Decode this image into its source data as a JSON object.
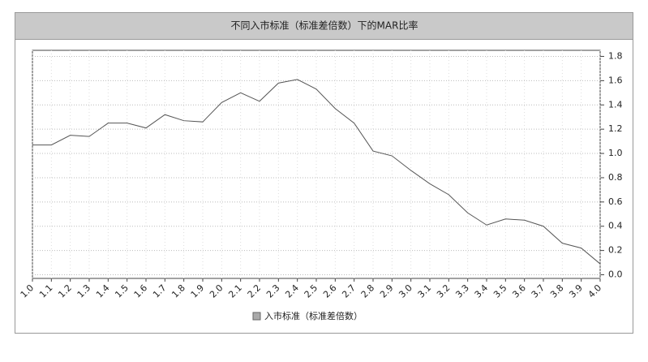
{
  "chart_data": {
    "type": "line",
    "title": "不同入市标准（标准差倍数）下的MAR比率",
    "x": [
      1.0,
      1.1,
      1.2,
      1.3,
      1.4,
      1.5,
      1.6,
      1.7,
      1.8,
      1.9,
      2.0,
      2.1,
      2.2,
      2.3,
      2.4,
      2.5,
      2.6,
      2.7,
      2.8,
      2.9,
      3.0,
      3.1,
      3.2,
      3.3,
      3.4,
      3.5,
      3.6,
      3.7,
      3.8,
      3.9,
      4.0
    ],
    "series": [
      {
        "name": "入市标准（标准差倍数）",
        "color": "#555555",
        "values": [
          1.07,
          1.07,
          1.15,
          1.14,
          1.25,
          1.25,
          1.21,
          1.32,
          1.27,
          1.26,
          1.42,
          1.5,
          1.43,
          1.58,
          1.61,
          1.53,
          1.37,
          1.25,
          1.02,
          0.98,
          0.86,
          0.75,
          0.66,
          0.51,
          0.41,
          0.46,
          0.45,
          0.4,
          0.26,
          0.22,
          0.09
        ]
      }
    ],
    "xlim": [
      1.0,
      4.0
    ],
    "xticks": [
      {
        "value": 1.0,
        "label": "1.0"
      },
      1.1,
      1.2,
      1.3,
      1.4,
      1.5,
      1.6,
      1.7,
      1.8,
      1.9,
      {
        "value": 2.0,
        "label": "2.0"
      },
      2.1,
      2.2,
      2.3,
      2.4,
      2.5,
      2.6,
      2.7,
      2.8,
      2.9,
      {
        "value": 3.0,
        "label": "3.0"
      },
      3.1,
      3.2,
      3.3,
      3.4,
      3.5,
      3.6,
      3.7,
      3.8,
      3.9,
      {
        "value": 4.0,
        "label": "4.0"
      }
    ],
    "ylim": [
      -0.03,
      1.85
    ],
    "yticks": [
      {
        "value": 0.0,
        "label": "0.0"
      },
      0.2,
      0.4,
      0.6,
      0.8,
      {
        "value": 1.0,
        "label": "1.0"
      },
      1.2,
      1.4,
      1.6,
      1.8
    ],
    "grid": true
  }
}
